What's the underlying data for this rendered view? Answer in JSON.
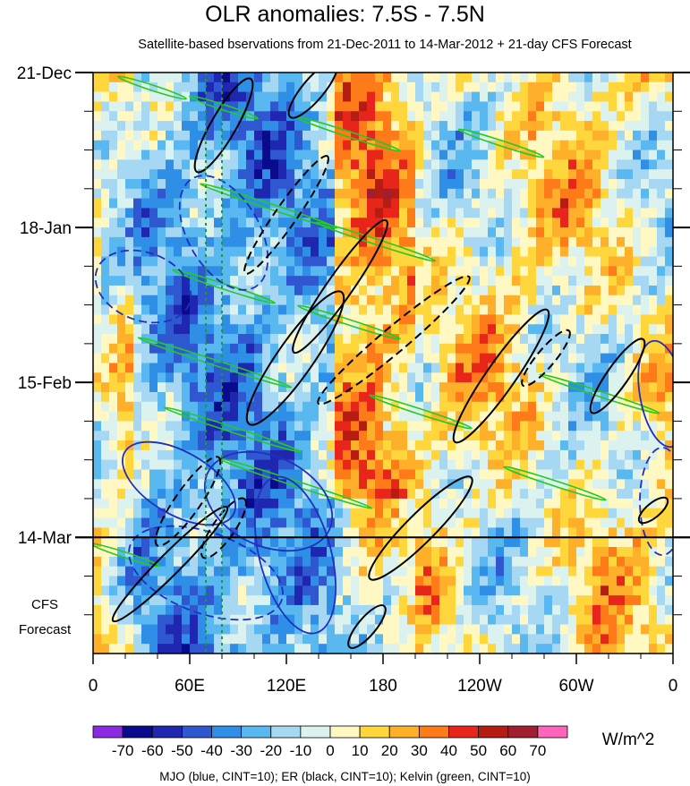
{
  "chart_data": {
    "type": "heatmap",
    "title": "OLR anomalies: 7.5S - 7.5N",
    "subtitle": "Satellite-based bservations from 21-Dec-2011 to 14-Mar-2012 + 21-day CFS Forecast",
    "x_axis": {
      "tick_labels": [
        "0",
        "60E",
        "120E",
        "180",
        "120W",
        "60W",
        "0"
      ],
      "tick_values_deg_east": [
        0,
        60,
        120,
        180,
        240,
        300,
        360
      ],
      "xlim_deg_east": [
        0,
        360
      ]
    },
    "y_axis": {
      "tick_labels": [
        "21-Dec",
        "18-Jan",
        "15-Feb",
        "14-Mar"
      ],
      "tick_dates": [
        "2011-12-21",
        "2012-01-18",
        "2012-02-15",
        "2012-03-14"
      ],
      "ylim_dates": [
        "2011-12-21",
        "2012-04-04"
      ],
      "inverted": true,
      "forecast_start": "2012-03-14",
      "forecast_label_line1": "CFS",
      "forecast_label_line2": "Forecast"
    },
    "colorbar": {
      "units": "W/m^2",
      "levels": [
        -70,
        -60,
        -50,
        -40,
        -30,
        -20,
        -10,
        0,
        10,
        20,
        30,
        40,
        50,
        60,
        70
      ],
      "labels": [
        "-70",
        "-60",
        "-50",
        "-40",
        "-30",
        "-20",
        "-10",
        "0",
        "10",
        "20",
        "30",
        "40",
        "50",
        "60",
        "70"
      ],
      "colors": [
        "#8a2be2",
        "#0a0a8c",
        "#1f26b0",
        "#2f58d0",
        "#2f8ee6",
        "#5ab8f0",
        "#a6d8f4",
        "#dcf2ee",
        "#fff8c2",
        "#ffd73c",
        "#ffb02a",
        "#ff7a18",
        "#e8251a",
        "#b51c12",
        "#a01e2e",
        "#ff66bb"
      ]
    },
    "background_field": {
      "description_pattern": [
        {
          "lon_range": [
            30,
            150
          ],
          "date_range": [
            "2011-12-21",
            "2012-04-04"
          ],
          "sign": "negative"
        },
        {
          "lon_range": [
            150,
            200
          ],
          "date_range": [
            "2011-12-21",
            "2012-03-14"
          ],
          "sign": "positive"
        },
        {
          "lon_range": [
            200,
            360
          ],
          "date_range": [
            "2011-12-21",
            "2012-04-04"
          ],
          "sign": "mixed"
        }
      ]
    },
    "contours": {
      "MJO": {
        "color": "#1f2fc0",
        "cint": 10
      },
      "ER": {
        "color": "#000000",
        "cint": 10
      },
      "Kelvin": {
        "color": "#22cc22",
        "cint": 10
      }
    },
    "footer": "MJO (blue, CINT=10); ER (black, CINT=10); Kelvin (green, CINT=10)"
  }
}
